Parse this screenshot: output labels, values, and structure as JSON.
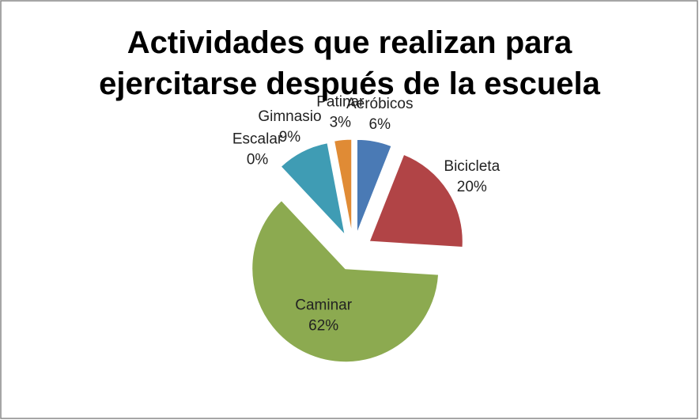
{
  "chart_data": {
    "type": "pie",
    "title": "Actividades que realizan para ejercitarse después de la escuela",
    "categories": [
      "Aeróbicos",
      "Bicicleta",
      "Caminar",
      "Escalar",
      "Gimnasio",
      "Patinar"
    ],
    "values": [
      6,
      20,
      62,
      0,
      9,
      3
    ],
    "value_labels": [
      "6%",
      "20%",
      "62%",
      "0%",
      "9%",
      "3%"
    ],
    "colors": [
      "#4a7ab5",
      "#b14446",
      "#8caa50",
      "#7e62a1",
      "#3f9cb4",
      "#e08b35"
    ],
    "exploded": true
  }
}
